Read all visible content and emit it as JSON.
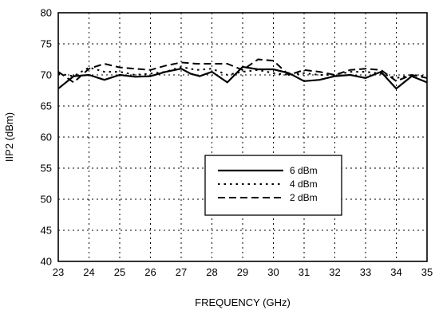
{
  "chart_data": {
    "type": "line",
    "title": "",
    "xlabel": "FREQUENCY (GHz)",
    "ylabel": "IIP2 (dBm)",
    "xlim": [
      23,
      35
    ],
    "ylim": [
      40,
      80
    ],
    "x_ticks": [
      "23",
      "24",
      "25",
      "26",
      "27",
      "28",
      "29",
      "30",
      "31",
      "32",
      "33",
      "34",
      "35"
    ],
    "y_ticks": [
      "40",
      "45",
      "50",
      "55",
      "60",
      "65",
      "70",
      "75",
      "80"
    ],
    "grid": true,
    "grid_style": "dotted",
    "legend_position": "center-right",
    "line_color": "#000000",
    "series": [
      {
        "name": "6 dBm",
        "dash": "solid",
        "x": [
          23,
          23.5,
          24,
          24.5,
          25,
          25.5,
          26,
          26.5,
          27,
          27.3,
          27.6,
          28,
          28.5,
          29,
          29.5,
          30,
          30.5,
          31,
          31.5,
          32,
          32.5,
          33,
          33.5,
          34,
          34.5,
          35
        ],
        "y": [
          67.8,
          69.8,
          70.0,
          69.2,
          70.0,
          69.7,
          69.8,
          70.5,
          71.0,
          70.2,
          69.8,
          70.5,
          68.8,
          71.3,
          70.9,
          70.9,
          70.3,
          69.0,
          69.2,
          69.8,
          70.0,
          69.5,
          70.5,
          67.8,
          69.8,
          68.8
        ]
      },
      {
        "name": "4 dBm",
        "dash": "dotted",
        "x": [
          23,
          23.5,
          24,
          24.5,
          25,
          25.5,
          26,
          26.5,
          27,
          27.5,
          28,
          28.5,
          29,
          29.5,
          30,
          30.5,
          31,
          31.5,
          32,
          32.5,
          33,
          33.5,
          34,
          34.5,
          35
        ],
        "y": [
          70.2,
          69.8,
          71.2,
          70.5,
          70.5,
          70.0,
          70.2,
          70.5,
          71.3,
          70.8,
          71.0,
          70.0,
          70.5,
          70.8,
          70.3,
          70.0,
          70.3,
          70.0,
          70.0,
          70.5,
          70.5,
          70.2,
          69.5,
          70.0,
          69.8
        ]
      },
      {
        "name": "2 dBm",
        "dash": "dashed",
        "x": [
          23,
          23.5,
          24,
          24.5,
          25,
          25.5,
          26,
          26.5,
          27,
          27.5,
          28,
          28.5,
          29,
          29.5,
          30,
          30.5,
          31,
          31.5,
          32,
          32.5,
          33,
          33.5,
          34,
          34.5,
          35
        ],
        "y": [
          70.5,
          68.8,
          71.0,
          71.8,
          71.2,
          71.0,
          70.8,
          71.5,
          72.0,
          71.8,
          71.8,
          71.8,
          70.8,
          72.5,
          72.3,
          70.0,
          70.8,
          70.5,
          70.0,
          70.8,
          71.0,
          70.8,
          69.0,
          70.0,
          69.5
        ]
      }
    ]
  }
}
